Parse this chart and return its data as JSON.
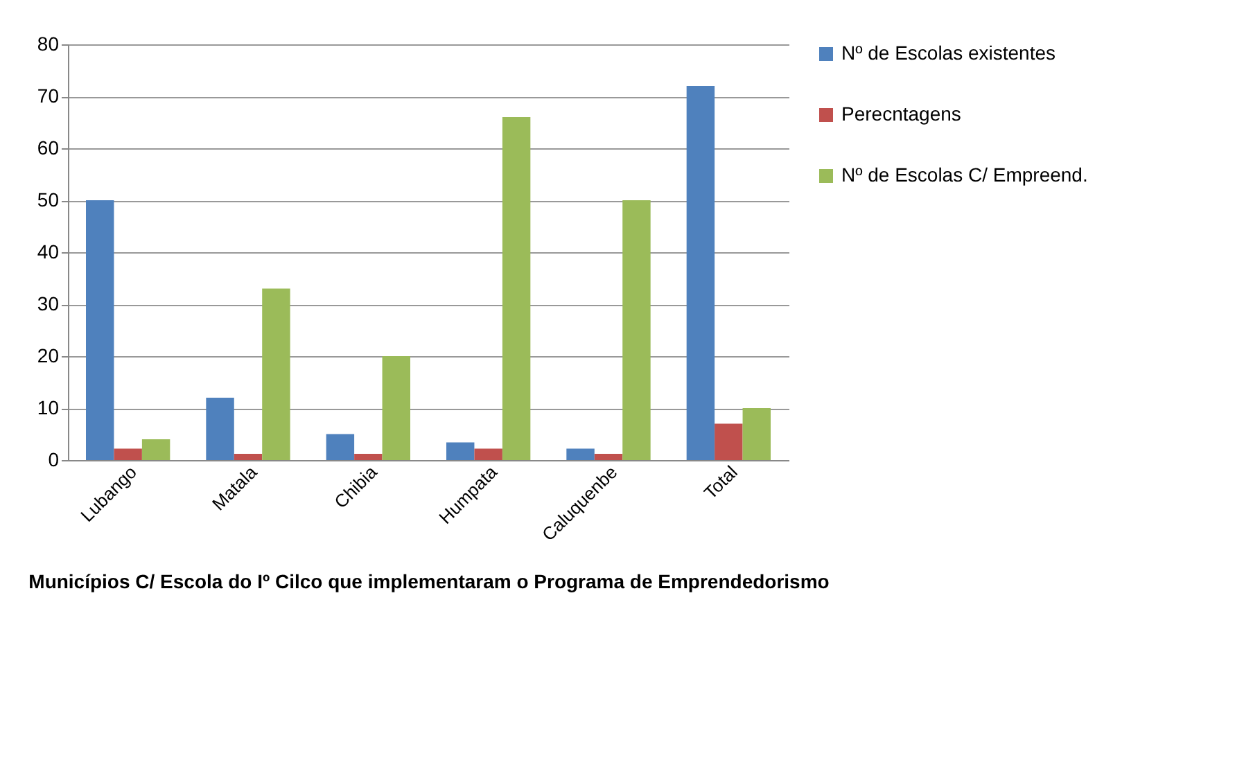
{
  "chart_data": {
    "type": "bar",
    "xlabel": "Municípios C/ Escola do Iº Cilco que implementaram o Programa de Emprendedorismo",
    "categories": [
      "Lubango",
      "Matala",
      "Chibia",
      "Humpata",
      "Caluquenbe",
      "Total"
    ],
    "series": [
      {
        "name": "Nº de Escolas existentes",
        "color": "#4f81bd",
        "values": [
          50,
          12,
          5,
          3.4,
          2.2,
          72
        ]
      },
      {
        "name": "Perecntagens",
        "color": "#c0504d",
        "values": [
          2.2,
          1.2,
          1.2,
          2.2,
          1.2,
          7
        ]
      },
      {
        "name": "Nº de Escolas C/ Empreend.",
        "color": "#9bbb59",
        "values": [
          4,
          33,
          20,
          66,
          50,
          10
        ]
      }
    ],
    "ylim": [
      0,
      80
    ],
    "yticks": [
      0,
      10,
      20,
      30,
      40,
      50,
      60,
      70,
      80
    ],
    "grid": "y",
    "legend": "right"
  }
}
